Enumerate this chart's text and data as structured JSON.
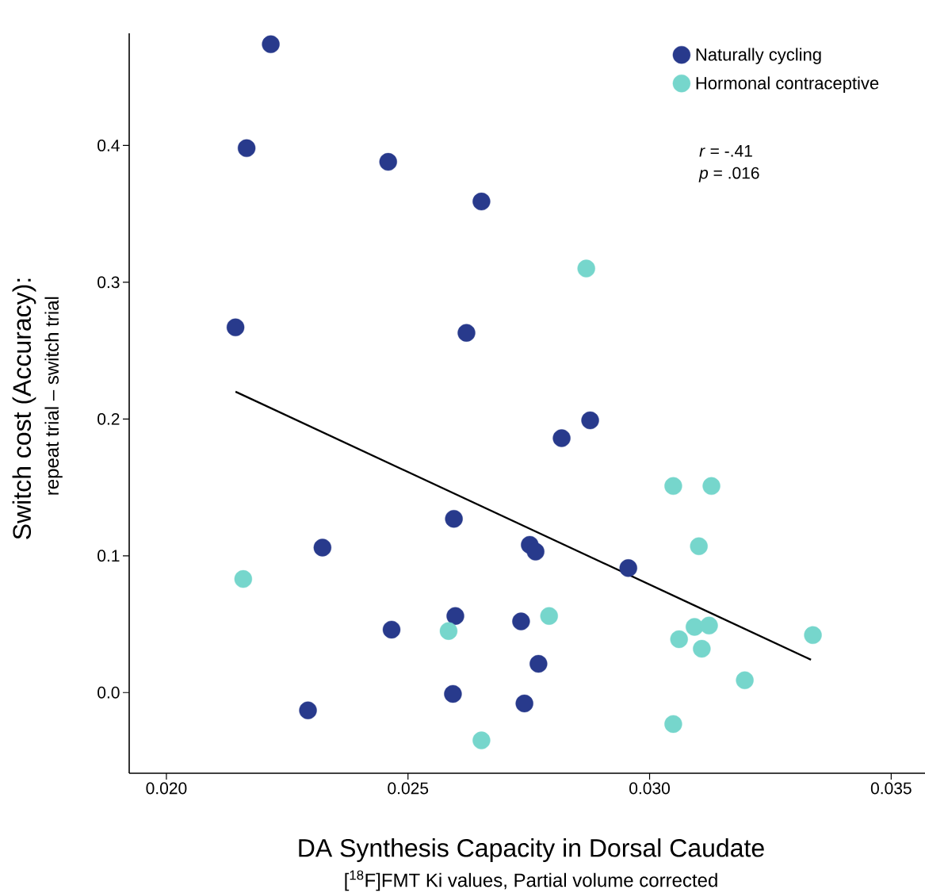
{
  "chart_data": {
    "type": "scatter",
    "xlabel": "DA Synthesis Capacity in Dorsal Caudate",
    "ylabel": "Switch cost (Accuracy):",
    "xlim": [
      0.01923,
      0.0357
    ],
    "ylim": [
      -0.059,
      0.482
    ],
    "xticks": [
      {
        "value": 0.02,
        "label": "0.020"
      },
      {
        "value": 0.025,
        "label": "0.025"
      },
      {
        "value": 0.03,
        "label": "0.030"
      },
      {
        "value": 0.035,
        "label": "0.035"
      }
    ],
    "yticks": [
      {
        "value": 0,
        "label": "0.0"
      },
      {
        "value": 0.1,
        "label": "0.1"
      },
      {
        "value": 0.2,
        "label": "0.2"
      },
      {
        "value": 0.3,
        "label": "0.3"
      },
      {
        "value": 0.4,
        "label": "0.4"
      }
    ],
    "legend": "top right",
    "annotations": [
      "repeat trial – switch trial",
      "[$^{18}$F]FMT Ki values, Partial volume corrected",
      "*r* = -.41",
      "*p* = .016"
    ],
    "series": [
      {
        "name": "Naturally cycling",
        "marker": "circle",
        "color": "#283a8c",
        "x": [
          0.02216,
          0.02166,
          0.02459,
          0.02652,
          0.02143,
          0.02621,
          0.02877,
          0.02818,
          0.02595,
          0.02323,
          0.02752,
          0.02764,
          0.02956,
          0.02598,
          0.02466,
          0.02734,
          0.0277,
          0.02593,
          0.02741,
          0.02293
        ],
        "values": [
          0.474,
          0.398,
          0.388,
          0.359,
          0.267,
          0.263,
          0.199,
          0.186,
          0.127,
          0.106,
          0.108,
          0.103,
          0.091,
          0.056,
          0.046,
          0.052,
          0.021,
          -0.001,
          -0.008,
          -0.013
        ]
      },
      {
        "name": "Hormonal contraceptive",
        "marker": "circle",
        "color": "#76d6cc",
        "x": [
          0.02869,
          0.02159,
          0.02584,
          0.02792,
          0.02652,
          0.03049,
          0.03128,
          0.03102,
          0.03061,
          0.03093,
          0.03123,
          0.03108,
          0.03197,
          0.03049,
          0.03338
        ],
        "values": [
          0.31,
          0.083,
          0.045,
          0.056,
          -0.035,
          0.151,
          0.151,
          0.107,
          0.039,
          0.048,
          0.049,
          0.032,
          0.009,
          -0.023,
          0.042
        ]
      },
      {
        "type": "line",
        "marker": "none",
        "color": "#000000",
        "x": [
          0.02143,
          0.03334
        ],
        "values": [
          0.22,
          0.024
        ]
      }
    ]
  }
}
